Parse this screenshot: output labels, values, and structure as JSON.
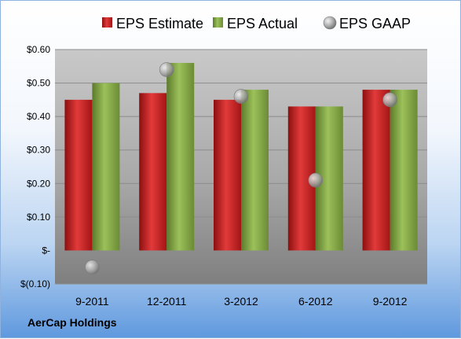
{
  "company": "AerCap Holdings",
  "chart_data": {
    "type": "bar",
    "categories": [
      "9-2011",
      "12-2011",
      "3-2012",
      "6-2012",
      "9-2012"
    ],
    "series": [
      {
        "name": "EPS Estimate",
        "kind": "bar",
        "color": "#d42a2a",
        "values": [
          0.45,
          0.47,
          0.45,
          0.43,
          0.48
        ]
      },
      {
        "name": "EPS Actual",
        "kind": "bar",
        "color": "#8aaf4c",
        "values": [
          0.5,
          0.56,
          0.48,
          0.43,
          0.48
        ]
      },
      {
        "name": "EPS GAAP",
        "kind": "marker",
        "color": "#b8b8b8",
        "values": [
          -0.05,
          0.54,
          0.46,
          0.21,
          0.45
        ]
      }
    ],
    "ylim": [
      -0.1,
      0.6
    ],
    "yticks": [
      -0.1,
      0,
      0.1,
      0.2,
      0.3,
      0.4,
      0.5,
      0.6
    ],
    "ytick_labels": [
      "$(0.10)",
      "$-",
      "$0.10",
      "$0.20",
      "$0.30",
      "$0.40",
      "$0.50",
      "$0.60"
    ],
    "grid": true,
    "legend_position": "top"
  }
}
